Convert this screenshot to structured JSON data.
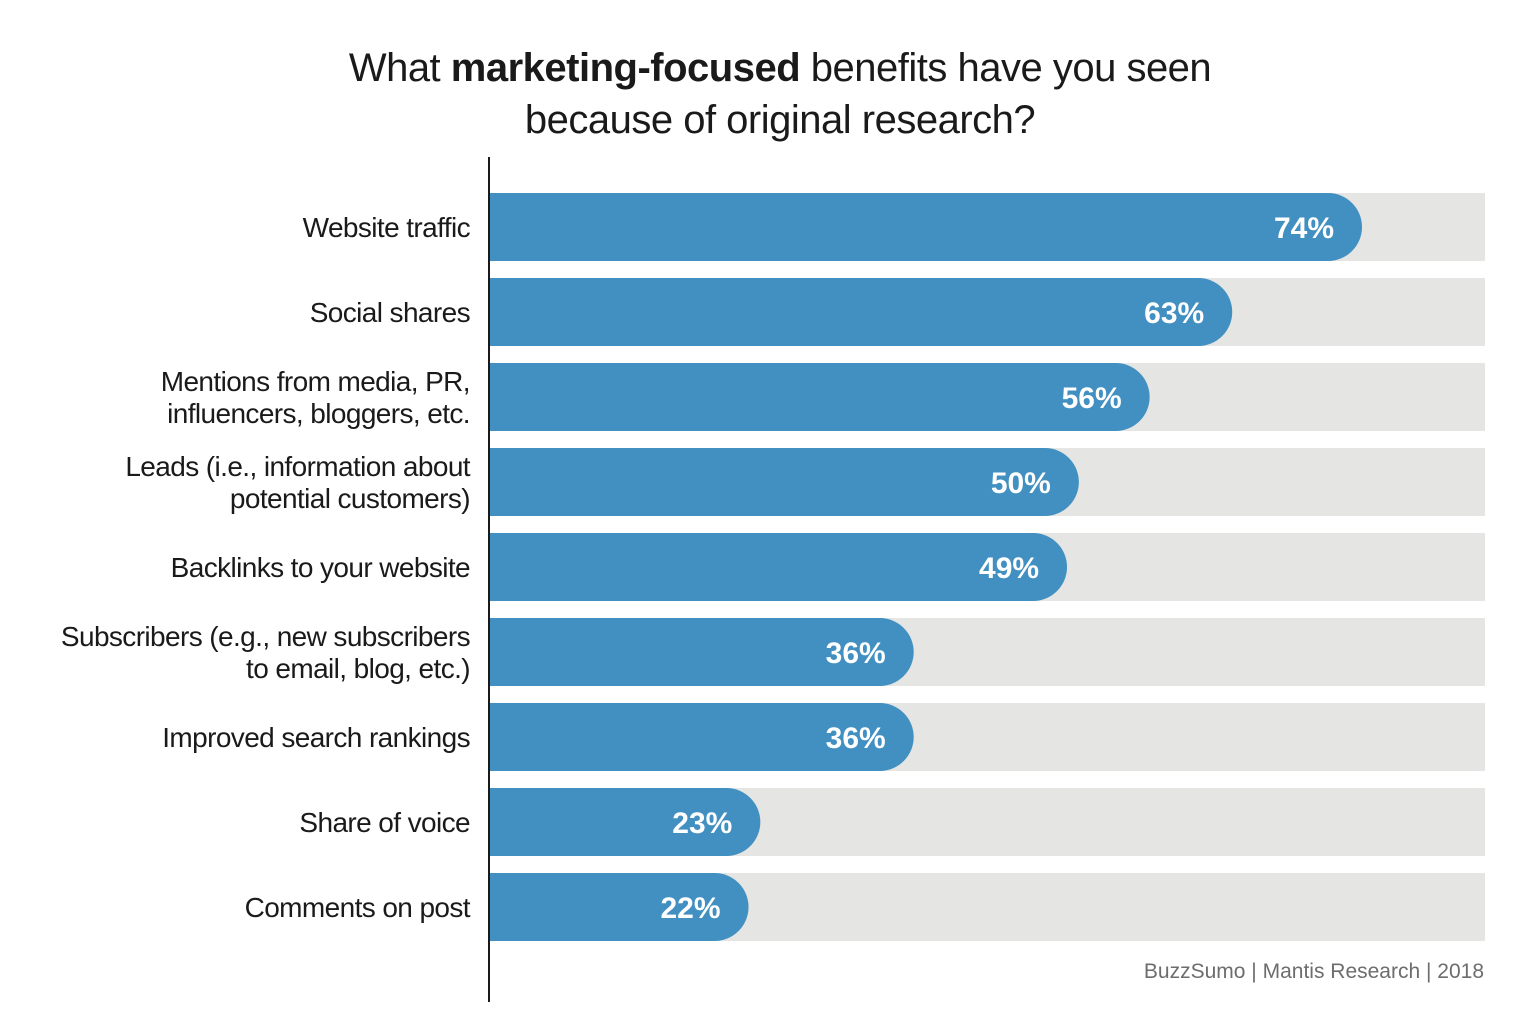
{
  "title": {
    "line1_pre": "What ",
    "line1_bold": "marketing-focused",
    "line1_post": " benefits have you seen",
    "line2": "because of original research?"
  },
  "source": "BuzzSumo | Mantis Research | 2018",
  "colors": {
    "bar": "#4190c1",
    "track": "#e5e5e3",
    "axis": "#1a1a1a",
    "value_text": "#ffffff"
  },
  "chart_data": {
    "type": "bar",
    "orientation": "horizontal",
    "title": "What marketing-focused benefits have you seen because of original research?",
    "categories": [
      [
        "Website traffic"
      ],
      [
        "Social shares"
      ],
      [
        "Mentions from media, PR,",
        "influencers, bloggers, etc."
      ],
      [
        "Leads (i.e., information about",
        "potential customers)"
      ],
      [
        "Backlinks to your website"
      ],
      [
        "Subscribers (e.g., new subscribers",
        "to email, blog, etc.)"
      ],
      [
        "Improved search rankings"
      ],
      [
        "Share of voice"
      ],
      [
        "Comments on post"
      ]
    ],
    "values": [
      74,
      63,
      56,
      50,
      49,
      36,
      36,
      23,
      22
    ],
    "value_labels": [
      "74%",
      "63%",
      "56%",
      "50%",
      "49%",
      "36%",
      "36%",
      "23%",
      "22%"
    ],
    "unit": "%",
    "xlim": [
      0,
      100
    ],
    "grid": false,
    "legend": "none"
  }
}
